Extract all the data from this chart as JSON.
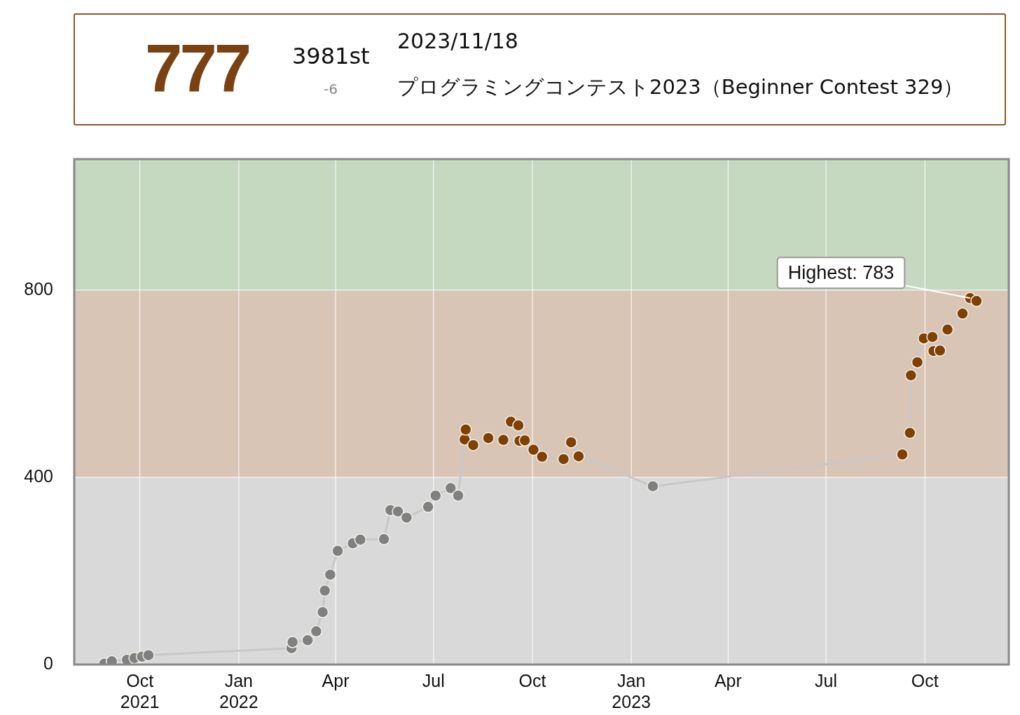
{
  "chart_data": {
    "type": "line",
    "annotations": [
      "777",
      "3981st",
      "-6",
      "2023/11/18",
      "プログラミングコンテスト2023（Beginner Contest 329）",
      {
        "text": "Highest: 783",
        "x": "2023-11-12",
        "y": 783
      }
    ],
    "x": [
      "2021-08-29",
      "2021-09-05",
      "2021-09-19",
      "2021-09-26",
      "2021-10-03",
      "2021-10-09",
      "2022-02-19",
      "2022-02-20",
      "2022-03-06",
      "2022-03-14",
      "2022-03-20",
      "2022-03-22",
      "2022-03-27",
      "2022-04-03",
      "2022-04-17",
      "2022-04-24",
      "2022-05-16",
      "2022-05-22",
      "2022-05-29",
      "2022-06-06",
      "2022-06-26",
      "2022-07-03",
      "2022-07-17",
      "2022-07-24",
      "2022-07-30",
      "2022-07-31",
      "2022-08-07",
      "2022-08-21",
      "2022-09-04",
      "2022-09-11",
      "2022-09-18",
      "2022-09-19",
      "2022-09-24",
      "2022-10-02",
      "2022-10-10",
      "2022-10-30",
      "2022-11-06",
      "2022-11-13",
      "2023-01-21",
      "2023-09-10",
      "2023-09-17",
      "2023-09-18",
      "2023-09-24",
      "2023-09-30",
      "2023-10-08",
      "2023-10-09",
      "2023-10-15",
      "2023-10-22",
      "2023-11-05",
      "2023-11-12",
      "2023-11-18"
    ],
    "series": [
      {
        "color": "#c8c8c8",
        "values": [
          2,
          7,
          10,
          14,
          17,
          20,
          35,
          48,
          52,
          71,
          112,
          158,
          192,
          243,
          259,
          267,
          268,
          330,
          327,
          314,
          337,
          361,
          377,
          361,
          481,
          502,
          469,
          484,
          480,
          519,
          511,
          478,
          479,
          459,
          444,
          439,
          475,
          445,
          381,
          449,
          495,
          618,
          646,
          697,
          700,
          670,
          671,
          716,
          750,
          783,
          777
        ],
        "colors": [
          "#808080",
          "#808080",
          "#808080",
          "#808080",
          "#808080",
          "#808080",
          "#808080",
          "#808080",
          "#808080",
          "#808080",
          "#808080",
          "#808080",
          "#808080",
          "#808080",
          "#808080",
          "#808080",
          "#808080",
          "#808080",
          "#808080",
          "#808080",
          "#808080",
          "#808080",
          "#808080",
          "#808080",
          "#804000",
          "#804000",
          "#804000",
          "#804000",
          "#804000",
          "#804000",
          "#804000",
          "#804000",
          "#804000",
          "#804000",
          "#804000",
          "#804000",
          "#804000",
          "#804000",
          "#808080",
          "#804000",
          "#804000",
          "#804000",
          "#804000",
          "#804000",
          "#804000",
          "#804000",
          "#804000",
          "#804000",
          "#804000",
          "#804000",
          "#804000"
        ]
      }
    ],
    "xlim": [
      "2021-08-01",
      "2023-12-18"
    ],
    "xticks": [
      {
        "value": "2021-10-01",
        "label": "Oct 2021"
      },
      {
        "value": "2022-01-01",
        "label": "Jan 2022"
      },
      {
        "value": "2022-04-01",
        "label": "Apr"
      },
      {
        "value": "2022-07-01",
        "label": "Jul"
      },
      {
        "value": "2022-10-01",
        "label": "Oct"
      },
      {
        "value": "2023-01-01",
        "label": "Jan 2023"
      },
      {
        "value": "2023-04-01",
        "label": "Apr"
      },
      {
        "value": "2023-07-01",
        "label": "Jul"
      },
      {
        "value": "2023-10-01",
        "label": "Oct"
      }
    ],
    "ylim": [
      0,
      1080
    ],
    "yticks": [
      0,
      400,
      800
    ],
    "bands": [
      {
        "axis": "y",
        "from": 0,
        "to": 400,
        "color": "#d9d9d9"
      },
      {
        "axis": "y",
        "from": 400,
        "to": 800,
        "color": "#d9c5b5"
      },
      {
        "axis": "y",
        "from": 800,
        "to": 1080,
        "color": "#c4d9bf"
      }
    ],
    "grid": true,
    "legend": false,
    "marker": "circle",
    "line_style": "solid"
  }
}
